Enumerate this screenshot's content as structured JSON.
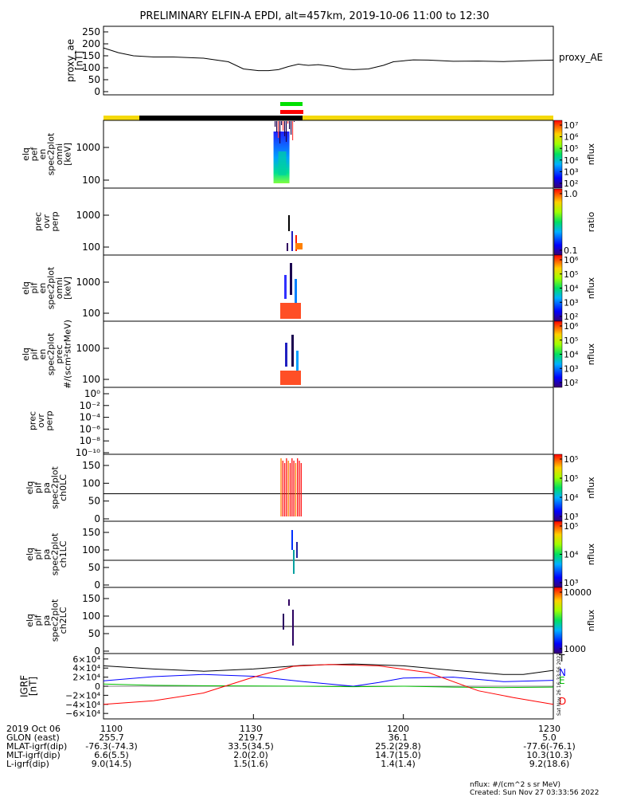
{
  "title": "PRELIMINARY ELFIN-A EPDI, alt=457km, 2019-10-06 11:00 to 12:30",
  "ae_panel": {
    "ylabel": "proxy_ae\n[nT]",
    "yticks": [
      "250",
      "200",
      "150",
      "100",
      "50",
      "0"
    ],
    "ylim": [
      0,
      260
    ],
    "legend": "proxy_AE"
  },
  "chart_data": {
    "type": "line",
    "x_unit": "minutes after 11:00 UT",
    "xlim": [
      0,
      90
    ],
    "proxy_ae": {
      "x": [
        0,
        3,
        6,
        10,
        14,
        20,
        25,
        28,
        31,
        33,
        35,
        37,
        39,
        40,
        41,
        43,
        46,
        48,
        50,
        53,
        56,
        58,
        62,
        65,
        70,
        75,
        80,
        86,
        90
      ],
      "y": [
        183,
        163,
        150,
        145,
        145,
        140,
        125,
        95,
        88,
        88,
        92,
        105,
        115,
        112,
        110,
        113,
        105,
        95,
        92,
        95,
        110,
        125,
        133,
        132,
        127,
        128,
        126,
        130,
        132
      ]
    },
    "igrf_panel": {
      "ylabel": "IGRF\n[nT]",
      "ylim": [
        -65000,
        65000
      ],
      "yticks": [
        "6×10⁴",
        "4×10⁴",
        "2×10⁴",
        "0",
        "−2×10⁴",
        "−4×10⁴",
        "−6×10⁴"
      ],
      "series": [
        {
          "name": "T",
          "color": "#000000",
          "x": [
            0,
            10,
            20,
            30,
            40,
            50,
            60,
            70,
            80,
            84,
            90
          ],
          "y": [
            45000,
            38000,
            33000,
            38000,
            46000,
            49000,
            45000,
            35000,
            26000,
            26000,
            35000
          ]
        },
        {
          "name": "N",
          "color": "#0000ff",
          "x": [
            0,
            10,
            20,
            30,
            40,
            50,
            55,
            60,
            70,
            80,
            90
          ],
          "y": [
            12000,
            21000,
            26000,
            22000,
            10000,
            0,
            8000,
            18000,
            20000,
            10000,
            13000
          ]
        },
        {
          "name": "E",
          "color": "#00c000",
          "x": [
            0,
            10,
            20,
            40,
            50,
            60,
            70,
            80,
            90
          ],
          "y": [
            5000,
            2000,
            1000,
            0,
            -1000,
            0,
            -2000,
            -3000,
            -2000
          ]
        },
        {
          "name": "D",
          "color": "#ff0000",
          "x": [
            0,
            10,
            20,
            30,
            38,
            45,
            55,
            65,
            75,
            82,
            90
          ],
          "y": [
            -40000,
            -32000,
            -15000,
            20000,
            44000,
            48000,
            45000,
            30000,
            -10000,
            -25000,
            -40000
          ]
        }
      ]
    }
  },
  "bar_legend": {
    "label": "",
    "colors": [
      "#f5d90a",
      "#000000"
    ]
  },
  "panels": [
    {
      "label": "elq\npef\nen\nspec2plot\nomni\n[keV]",
      "yticks": [
        "1000",
        "100"
      ],
      "cb_label": "nflux",
      "cb_ticks": [
        "10⁷",
        "10⁶",
        "10⁵",
        "10⁴",
        "10³",
        "10²"
      ]
    },
    {
      "label": "prec\novr\nperp",
      "yticks": [
        "1000",
        "100"
      ],
      "cb_label": "ratio",
      "cb_ticks": [
        "1.0",
        "0.1"
      ]
    },
    {
      "label": "elq\npif\nen\nspec2plot\nomni\n[keV]",
      "yticks": [
        "1000",
        "100"
      ],
      "cb_label": "nflux",
      "cb_ticks": [
        "10⁶",
        "10⁵",
        "10⁴",
        "10³",
        "10²"
      ]
    },
    {
      "label": "elq\npif\nen\nspec2plot\nprec\n#/(scm²strMeV)",
      "yticks": [
        "1000",
        "100"
      ],
      "cb_label": "nflux",
      "cb_ticks": [
        "10⁶",
        "10⁵",
        "10⁴",
        "10³",
        "10²"
      ]
    },
    {
      "label": "prec\novr\nperp",
      "yticks": [
        "10⁰",
        "10⁻²",
        "10⁻⁴",
        "10⁻⁶",
        "10⁻⁸",
        "10⁻¹⁰"
      ],
      "cb_label": "",
      "cb_ticks": []
    },
    {
      "label": "elq\npif\npa\nspec2plot\nch0LC",
      "yticks": [
        "150",
        "100",
        "50",
        "0"
      ],
      "cb_label": "nflux",
      "cb_ticks": [
        "10⁵",
        "10⁵",
        "10⁴",
        "10³"
      ]
    },
    {
      "label": "elq\npif\npa\nspec2plot\nch1LC",
      "yticks": [
        "150",
        "100",
        "50",
        "0"
      ],
      "cb_label": "nflux",
      "cb_ticks": [
        "10⁵",
        "10⁴",
        "10³"
      ]
    },
    {
      "label": "elq\npif\npa\nspec2plot\nch2LC",
      "yticks": [
        "150",
        "100",
        "50",
        "0"
      ],
      "cb_label": "nflux",
      "cb_ticks": [
        "10000",
        "1000"
      ]
    }
  ],
  "side_stamp": "Sat Nov 26 16:33:56 2022",
  "ephemeris": {
    "rows": [
      [
        "2019 Oct 06",
        "1100",
        "1130",
        "1200",
        "1230"
      ],
      [
        "GLON (east)",
        "255.7",
        "219.7",
        "36.1",
        "5.0"
      ],
      [
        "MLAT-igrf(dip)",
        "-76.3(-74.3)",
        "33.5(34.5)",
        "25.2(29.8)",
        "-77.6(-76.1)"
      ],
      [
        "MLT-igrf(dip)",
        "6.6(5.5)",
        "2.0(2.0)",
        "14.7(15.0)",
        "10.3(10.3)"
      ],
      [
        "L-igrf(dip)",
        "9.0(14.5)",
        "1.5(1.6)",
        "1.4(1.4)",
        "9.2(18.6)"
      ]
    ]
  },
  "footer": {
    "line1": "nflux: #/(cm^2 s sr MeV)",
    "line2": "Created: Sun Nov 27 03:33:56 2022"
  }
}
